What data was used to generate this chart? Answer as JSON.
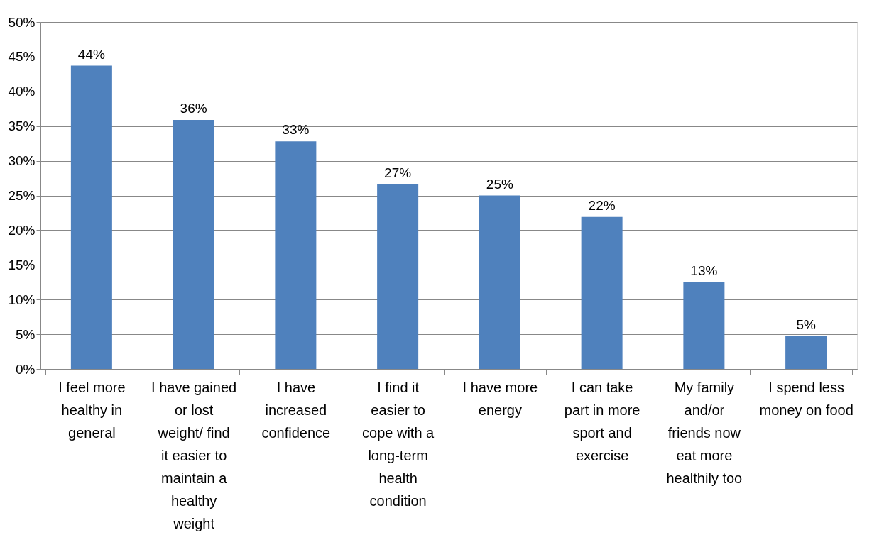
{
  "chart_data": {
    "type": "bar",
    "categories": [
      "I feel more healthy in general",
      "I have gained or lost weight/ find it easier to maintain a healthy weight",
      "I have increased confidence",
      "I find it easier to cope with a long-term health condition",
      "I have more energy",
      "I can take part in more sport and exercise",
      "My family and/or friends now eat more healthily too",
      "I spend less money on food"
    ],
    "values": [
      43.7,
      35.9,
      32.8,
      26.6,
      25.0,
      21.9,
      12.5,
      4.7
    ],
    "value_labels": [
      "44%",
      "36%",
      "33%",
      "27%",
      "25%",
      "22%",
      "13%",
      "5%"
    ],
    "color": "#4f81bd",
    "ylim": [
      0,
      50
    ],
    "yticks": [
      {
        "value": 0,
        "label": "0%"
      },
      {
        "value": 5,
        "label": "5%"
      },
      {
        "value": 10,
        "label": "10%"
      },
      {
        "value": 15,
        "label": "15%"
      },
      {
        "value": 20,
        "label": "20%"
      },
      {
        "value": 25,
        "label": "25%"
      },
      {
        "value": 30,
        "label": "30%"
      },
      {
        "value": 35,
        "label": "35%"
      },
      {
        "value": 40,
        "label": "40%"
      },
      {
        "value": 45,
        "label": "45%"
      },
      {
        "value": 50,
        "label": "50%"
      }
    ],
    "grid": "y"
  }
}
